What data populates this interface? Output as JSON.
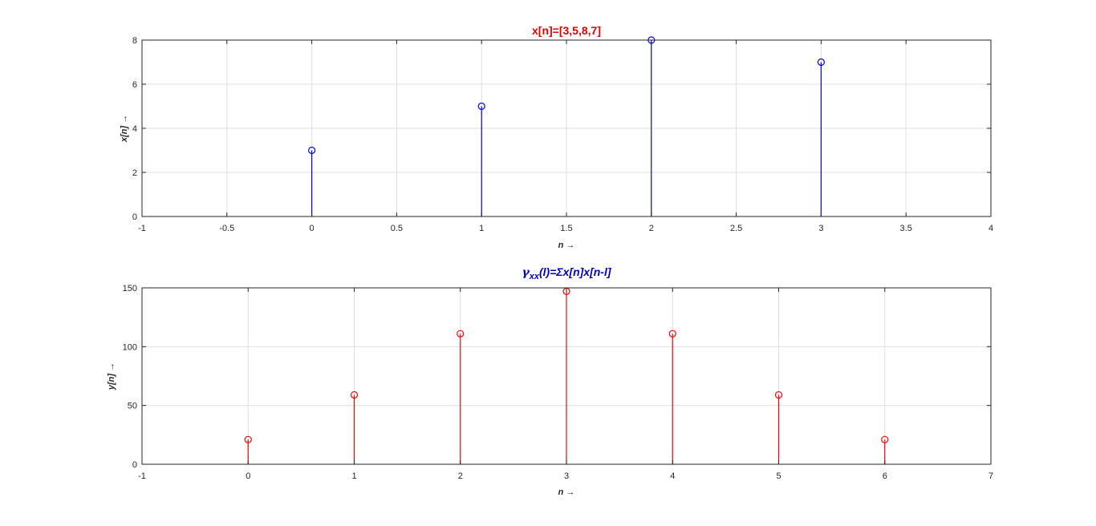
{
  "chart_data": [
    {
      "type": "stem",
      "title": "x[n]=[3,5,8,7]",
      "title_color": "#e00000",
      "title_style": "bold",
      "xlabel": "n →",
      "ylabel": "x[n] →",
      "x": [
        0,
        1,
        2,
        3
      ],
      "values": [
        3,
        5,
        8,
        7
      ],
      "color": "#0000ff",
      "xlim": [
        -1,
        4
      ],
      "ylim": [
        0,
        8
      ],
      "xticks": [
        -1,
        -0.5,
        0,
        0.5,
        1,
        1.5,
        2,
        2.5,
        3,
        3.5,
        4
      ],
      "xtick_labels": [
        "-1",
        "-0.5",
        "0",
        "0.5",
        "1",
        "1.5",
        "2",
        "2.5",
        "3",
        "3.5",
        "4"
      ],
      "yticks": [
        0,
        2,
        4,
        6,
        8
      ],
      "ytick_labels": [
        "0",
        "2",
        "4",
        "6",
        "8"
      ],
      "grid": true
    },
    {
      "type": "stem",
      "title": "γxx(l)=Σx[n]x[n-l]",
      "title_parts": {
        "symbol": "γ",
        "subscript": "xx",
        "rest": "(l)=Σx[n]x[n-l]"
      },
      "title_color": "#0000cc",
      "title_style": "bold-italic",
      "xlabel": "n →",
      "ylabel": "y[n] →",
      "x": [
        0,
        1,
        2,
        3,
        4,
        5,
        6
      ],
      "values": [
        21,
        59,
        111,
        147,
        111,
        59,
        21
      ],
      "color": "#ff0000",
      "xlim": [
        -1,
        7
      ],
      "ylim": [
        0,
        150
      ],
      "xticks": [
        -1,
        0,
        1,
        2,
        3,
        4,
        5,
        6,
        7
      ],
      "xtick_labels": [
        "-1",
        "0",
        "1",
        "2",
        "3",
        "4",
        "5",
        "6",
        "7"
      ],
      "yticks": [
        0,
        50,
        100,
        150
      ],
      "ytick_labels": [
        "0",
        "50",
        "100",
        "150"
      ],
      "grid": true
    }
  ]
}
